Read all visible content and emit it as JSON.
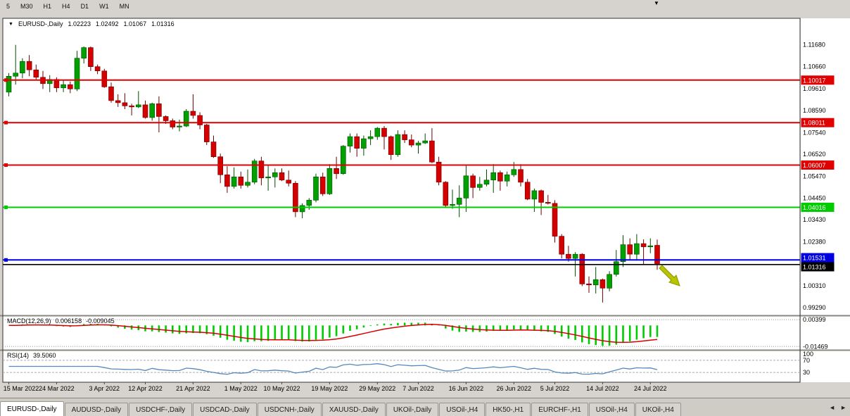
{
  "toolbar": {
    "timeframes": [
      "5",
      "M30",
      "H1",
      "H4",
      "D1",
      "W1",
      "MN"
    ]
  },
  "chart": {
    "title": {
      "symbol": "EURUSD-,Daily",
      "open": "1.02223",
      "high": "1.02492",
      "low": "1.01067",
      "close": "1.01316"
    },
    "price_axis_ticks": [
      {
        "label": "1.11680",
        "value": 1.1168
      },
      {
        "label": "1.10660",
        "value": 1.1066
      },
      {
        "label": "1.09610",
        "value": 1.0961
      },
      {
        "label": "1.08590",
        "value": 1.0859
      },
      {
        "label": "1.07540",
        "value": 1.0754
      },
      {
        "label": "1.06520",
        "value": 1.0652
      },
      {
        "label": "1.05470",
        "value": 1.0547
      },
      {
        "label": "1.04450",
        "value": 1.0445
      },
      {
        "label": "1.03430",
        "value": 1.0343
      },
      {
        "label": "1.02380",
        "value": 1.0238
      },
      {
        "label": "1.00310",
        "value": 1.0031
      },
      {
        "label": "0.99290",
        "value": 0.9929
      }
    ],
    "levels": [
      {
        "label": "1.10017",
        "value": 1.10017,
        "color": "#e00000",
        "kind": "resistance"
      },
      {
        "label": "1.08011",
        "value": 1.08011,
        "color": "#e00000",
        "kind": "resistance"
      },
      {
        "label": "1.06007",
        "value": 1.06007,
        "color": "#e00000",
        "kind": "resistance"
      },
      {
        "label": "1.04016",
        "value": 1.04016,
        "color": "#00cc00",
        "kind": "support"
      },
      {
        "label": "1.01531",
        "value": 1.01531,
        "color": "#0000e0",
        "kind": "support"
      },
      {
        "label": "1.01316",
        "value": 1.01316,
        "color": "#000000",
        "kind": "current-price"
      }
    ],
    "annotations": [
      {
        "type": "arrow",
        "direction": "down-right",
        "color": "#b7c400"
      }
    ]
  },
  "chart_data": {
    "type": "candlestick",
    "symbol": "EURUSD",
    "timeframe": "Daily",
    "ylim": [
      0.9895,
      1.129
    ],
    "candle_format": [
      "date",
      "open",
      "high",
      "low",
      "close"
    ],
    "x_labels": [
      {
        "label": "15 Mar 2022",
        "index": 0
      },
      {
        "label": "24 Mar 2022",
        "index": 7
      },
      {
        "label": "3 Apr 2022",
        "index": 14
      },
      {
        "label": "12 Apr 2022",
        "index": 20
      },
      {
        "label": "21 Apr 2022",
        "index": 27
      },
      {
        "label": "1 May 2022",
        "index": 34
      },
      {
        "label": "10 May 2022",
        "index": 40
      },
      {
        "label": "19 May 2022",
        "index": 47
      },
      {
        "label": "29 May 2022",
        "index": 54
      },
      {
        "label": "7 Jun 2022",
        "index": 60
      },
      {
        "label": "16 Jun 2022",
        "index": 67
      },
      {
        "label": "26 Jun 2022",
        "index": 74
      },
      {
        "label": "5 Jul 2022",
        "index": 80
      },
      {
        "label": "14 Jul 2022",
        "index": 87
      },
      {
        "label": "24 Jul 2022",
        "index": 94
      }
    ],
    "candles": [
      [
        "2022-03-15",
        1.0945,
        1.1035,
        1.0925,
        1.102
      ],
      [
        "2022-03-16",
        1.102,
        1.1168,
        1.098,
        1.1035
      ],
      [
        "2022-03-17",
        1.1035,
        1.1105,
        1.101,
        1.109
      ],
      [
        "2022-03-18",
        1.109,
        1.112,
        1.102,
        1.105
      ],
      [
        "2022-03-21",
        1.105,
        1.1075,
        1.1005,
        1.1015
      ],
      [
        "2022-03-22",
        1.1015,
        1.1045,
        1.096,
        1.0985
      ],
      [
        "2022-03-23",
        1.0985,
        1.1025,
        1.0945,
        1.1005
      ],
      [
        "2022-03-24",
        1.1005,
        1.1015,
        1.0945,
        1.0965
      ],
      [
        "2022-03-25",
        1.0965,
        1.1,
        1.0945,
        1.098
      ],
      [
        "2022-03-28",
        1.098,
        1.0995,
        1.094,
        1.096
      ],
      [
        "2022-03-29",
        1.096,
        1.114,
        1.095,
        1.1105
      ],
      [
        "2022-03-30",
        1.1105,
        1.116,
        1.108,
        1.1155
      ],
      [
        "2022-03-31",
        1.1155,
        1.116,
        1.1045,
        1.1065
      ],
      [
        "2022-04-01",
        1.1065,
        1.1075,
        1.103,
        1.1045
      ],
      [
        "2022-04-04",
        1.1045,
        1.1055,
        1.0965,
        1.097
      ],
      [
        "2022-04-05",
        1.097,
        1.099,
        1.0895,
        1.0905
      ],
      [
        "2022-04-06",
        1.0905,
        1.0935,
        1.0875,
        1.0895
      ],
      [
        "2022-04-07",
        1.0895,
        1.094,
        1.0865,
        1.088
      ],
      [
        "2022-04-08",
        1.088,
        1.089,
        1.0835,
        1.0875
      ],
      [
        "2022-04-11",
        1.0875,
        1.095,
        1.087,
        1.0885
      ],
      [
        "2022-04-12",
        1.0885,
        1.0905,
        1.082,
        1.0825
      ],
      [
        "2022-04-13",
        1.0825,
        1.0895,
        1.081,
        1.089
      ],
      [
        "2022-04-14",
        1.089,
        1.0925,
        1.0755,
        1.083
      ],
      [
        "2022-04-15",
        1.083,
        1.0835,
        1.0795,
        1.081
      ],
      [
        "2022-04-18",
        1.081,
        1.082,
        1.077,
        1.078
      ],
      [
        "2022-04-19",
        1.078,
        1.0815,
        1.076,
        1.0785
      ],
      [
        "2022-04-20",
        1.0785,
        1.0865,
        1.078,
        1.0855
      ],
      [
        "2022-04-21",
        1.0855,
        1.0935,
        1.082,
        1.0835
      ],
      [
        "2022-04-22",
        1.0835,
        1.085,
        1.077,
        1.079
      ],
      [
        "2022-04-25",
        1.079,
        1.0795,
        1.0695,
        1.071
      ],
      [
        "2022-04-26",
        1.071,
        1.074,
        1.0635,
        1.064
      ],
      [
        "2022-04-27",
        1.064,
        1.0655,
        1.0515,
        1.0555
      ],
      [
        "2022-04-28",
        1.0555,
        1.0595,
        1.047,
        1.05
      ],
      [
        "2022-04-29",
        1.05,
        1.059,
        1.049,
        1.0545
      ],
      [
        "2022-05-02",
        1.0545,
        1.057,
        1.049,
        1.0505
      ],
      [
        "2022-05-03",
        1.0505,
        1.058,
        1.0495,
        1.052
      ],
      [
        "2022-05-04",
        1.052,
        1.063,
        1.051,
        1.062
      ],
      [
        "2022-05-05",
        1.062,
        1.064,
        1.0505,
        1.054
      ],
      [
        "2022-05-06",
        1.054,
        1.06,
        1.048,
        1.0545
      ],
      [
        "2022-05-09",
        1.0545,
        1.0585,
        1.0495,
        1.0565
      ],
      [
        "2022-05-10",
        1.0565,
        1.0585,
        1.0525,
        1.053
      ],
      [
        "2022-05-11",
        1.053,
        1.0575,
        1.05,
        1.0515
      ],
      [
        "2022-05-12",
        1.0515,
        1.0525,
        1.0355,
        1.038
      ],
      [
        "2022-05-13",
        1.038,
        1.042,
        1.035,
        1.041
      ],
      [
        "2022-05-16",
        1.041,
        1.0445,
        1.039,
        1.0435
      ],
      [
        "2022-05-17",
        1.0435,
        1.056,
        1.0425,
        1.0545
      ],
      [
        "2022-05-18",
        1.0545,
        1.0565,
        1.0455,
        1.0465
      ],
      [
        "2022-05-19",
        1.0465,
        1.0605,
        1.046,
        1.0585
      ],
      [
        "2022-05-20",
        1.0585,
        1.064,
        1.0535,
        1.056
      ],
      [
        "2022-05-23",
        1.056,
        1.0695,
        1.0555,
        1.069
      ],
      [
        "2022-05-24",
        1.069,
        1.075,
        1.066,
        1.0735
      ],
      [
        "2022-05-25",
        1.0735,
        1.075,
        1.064,
        1.068
      ],
      [
        "2022-05-26",
        1.068,
        1.074,
        1.0645,
        1.0725
      ],
      [
        "2022-05-27",
        1.0725,
        1.0765,
        1.0695,
        1.0735
      ],
      [
        "2022-05-30",
        1.0735,
        1.078,
        1.072,
        1.0775
      ],
      [
        "2022-05-31",
        1.0775,
        1.0785,
        1.0675,
        1.0735
      ],
      [
        "2022-06-01",
        1.0735,
        1.074,
        1.0625,
        1.065
      ],
      [
        "2022-06-02",
        1.065,
        1.0765,
        1.064,
        1.0745
      ],
      [
        "2022-06-03",
        1.0745,
        1.0765,
        1.0705,
        1.072
      ],
      [
        "2022-06-06",
        1.072,
        1.0745,
        1.0685,
        1.0695
      ],
      [
        "2022-06-07",
        1.0695,
        1.0715,
        1.0655,
        1.0705
      ],
      [
        "2022-06-08",
        1.0705,
        1.075,
        1.07,
        1.0715
      ],
      [
        "2022-06-09",
        1.0715,
        1.0775,
        1.061,
        1.0615
      ],
      [
        "2022-06-10",
        1.0615,
        1.064,
        1.0505,
        1.052
      ],
      [
        "2022-06-13",
        1.052,
        1.0525,
        1.04,
        1.041
      ],
      [
        "2022-06-14",
        1.041,
        1.0485,
        1.0395,
        1.0415
      ],
      [
        "2022-06-15",
        1.0415,
        1.0505,
        1.0355,
        1.0445
      ],
      [
        "2022-06-16",
        1.0445,
        1.06,
        1.038,
        1.055
      ],
      [
        "2022-06-17",
        1.055,
        1.056,
        1.0445,
        1.0495
      ],
      [
        "2022-06-20",
        1.0495,
        1.0545,
        1.048,
        1.051
      ],
      [
        "2022-06-21",
        1.051,
        1.058,
        1.05,
        1.053
      ],
      [
        "2022-06-22",
        1.053,
        1.0605,
        1.047,
        1.0565
      ],
      [
        "2022-06-23",
        1.0565,
        1.0575,
        1.048,
        1.0525
      ],
      [
        "2022-06-24",
        1.0525,
        1.057,
        1.05,
        1.0555
      ],
      [
        "2022-06-27",
        1.0555,
        1.0615,
        1.0545,
        1.058
      ],
      [
        "2022-06-28",
        1.058,
        1.0605,
        1.05,
        1.052
      ],
      [
        "2022-06-29",
        1.052,
        1.0535,
        1.0435,
        1.044
      ],
      [
        "2022-06-30",
        1.044,
        1.049,
        1.038,
        1.048
      ],
      [
        "2022-07-01",
        1.048,
        1.0485,
        1.0365,
        1.0425
      ],
      [
        "2022-07-04",
        1.0425,
        1.046,
        1.0415,
        1.042
      ],
      [
        "2022-07-05",
        1.042,
        1.0435,
        1.0235,
        1.0265
      ],
      [
        "2022-07-06",
        1.0265,
        1.0275,
        1.016,
        1.018
      ],
      [
        "2022-07-07",
        1.018,
        1.022,
        1.0145,
        1.016
      ],
      [
        "2022-07-08",
        1.016,
        1.019,
        1.0075,
        1.018
      ],
      [
        "2022-07-11",
        1.018,
        1.0185,
        1.003,
        1.004
      ],
      [
        "2022-07-12",
        1.004,
        1.0075,
        0.9998,
        1.0035
      ],
      [
        "2022-07-13",
        1.0035,
        1.012,
        0.9995,
        1.006
      ],
      [
        "2022-07-14",
        1.006,
        1.0065,
        0.9952,
        1.002
      ],
      [
        "2022-07-15",
        1.002,
        1.01,
        1.0005,
        1.0085
      ],
      [
        "2022-07-18",
        1.0085,
        1.02,
        1.0075,
        1.0145
      ],
      [
        "2022-07-19",
        1.0145,
        1.027,
        1.012,
        1.0225
      ],
      [
        "2022-07-20",
        1.0225,
        1.0255,
        1.0155,
        1.018
      ],
      [
        "2022-07-21",
        1.018,
        1.0275,
        1.015,
        1.023
      ],
      [
        "2022-07-22",
        1.023,
        1.025,
        1.013,
        1.0215
      ],
      [
        "2022-07-25",
        1.0215,
        1.0255,
        1.0185,
        1.022
      ],
      [
        "2022-07-26",
        1.02223,
        1.02492,
        1.01067,
        1.01316
      ]
    ]
  },
  "indicators": {
    "macd": {
      "name": "MACD(12,26,9)",
      "value_main": "0.006158",
      "value_signal": "-0.009045",
      "axis_labels": [
        {
          "label": "0.00399",
          "value": 0.00399
        },
        {
          "label": "-0.01469",
          "value": -0.01469
        }
      ],
      "histogram_color": "#00cc00",
      "signal_color": "#d40000"
    },
    "rsi": {
      "name": "RSI(14)",
      "value": "39.5060",
      "axis_labels": [
        {
          "label": "100",
          "value": 100
        },
        {
          "label": "70",
          "value": 70
        },
        {
          "label": "30",
          "value": 30
        }
      ],
      "levels": [
        70,
        30
      ],
      "line_color": "#5588bb"
    }
  },
  "tabs": {
    "items": [
      {
        "label": "EURUSD-,Daily",
        "active": true
      },
      {
        "label": "AUDUSD-,Daily",
        "active": false
      },
      {
        "label": "USDCHF-,Daily",
        "active": false
      },
      {
        "label": "USDCAD-,Daily",
        "active": false
      },
      {
        "label": "USDCNH-,Daily",
        "active": false
      },
      {
        "label": "XAUUSD-,Daily",
        "active": false
      },
      {
        "label": "UKOil-,Daily",
        "active": false
      },
      {
        "label": "USOil-,H4",
        "active": false
      },
      {
        "label": "HK50-,H1",
        "active": false
      },
      {
        "label": "EURCHF-,H1",
        "active": false
      },
      {
        "label": "USOil-,H4",
        "active": false
      },
      {
        "label": "UKOil-,H4",
        "active": false
      }
    ],
    "scroll_left_icon": "◄",
    "scroll_right_icon": "►"
  },
  "icons": {
    "shift_marker": "▼",
    "symbol_dropdown": "▼"
  },
  "colors": {
    "bull": "#00a000",
    "bear": "#d40000",
    "chart_bg": "#ffffff",
    "frame_bg": "#d6d3ce"
  }
}
